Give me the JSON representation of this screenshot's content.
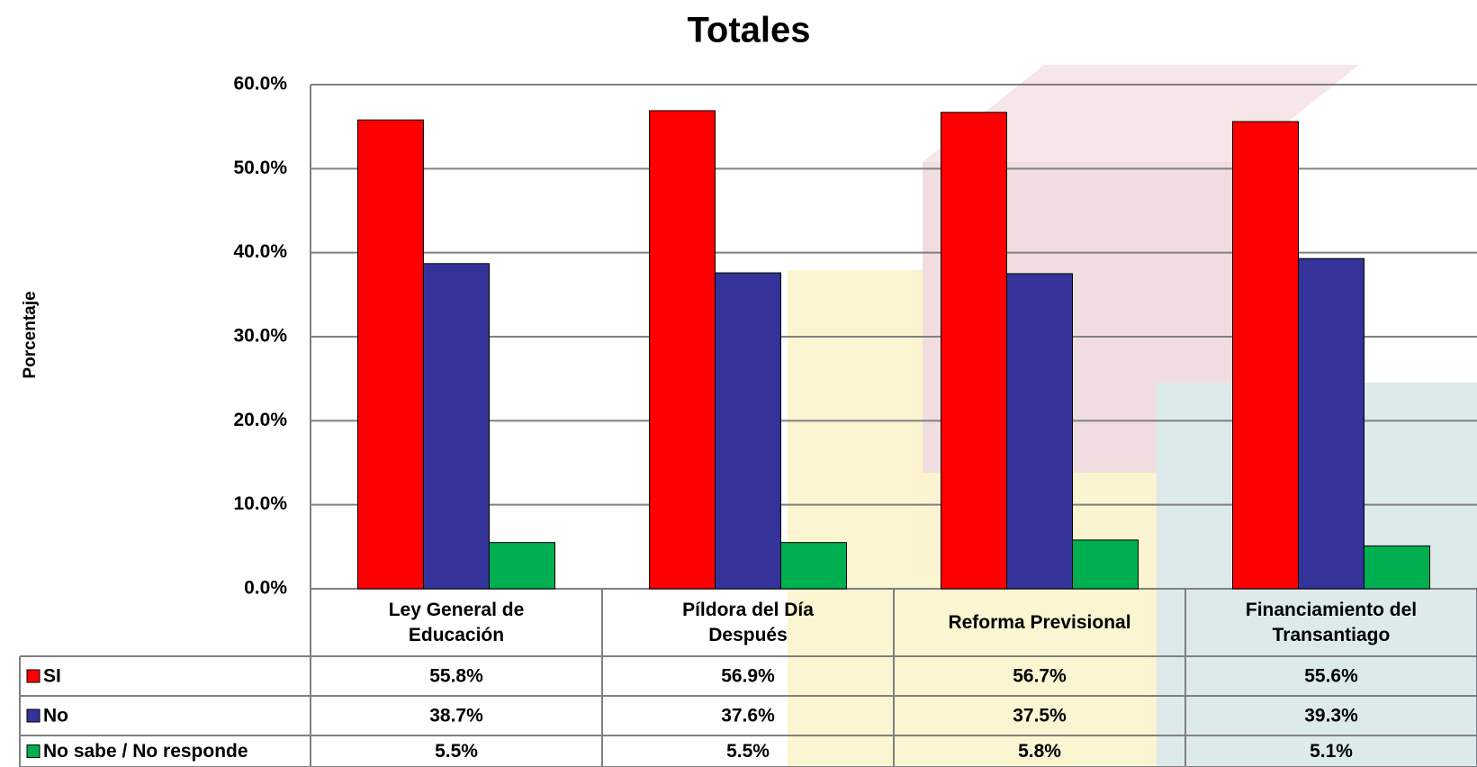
{
  "chart_data": {
    "type": "bar",
    "title": "Totales",
    "y_label": "Porcentaje",
    "categories": [
      "Ley General de Educación",
      "Píldora del Día Después",
      "Reforma Previsional",
      "Financiamiento del Transantiago"
    ],
    "series": [
      {
        "name": "SI",
        "color": "#ff0000",
        "values": [
          55.8,
          56.9,
          56.7,
          55.6
        ],
        "value_labels": [
          "55.8%",
          "56.9%",
          "56.7%",
          "55.6%"
        ]
      },
      {
        "name": "No",
        "color": "#333399",
        "values": [
          38.7,
          37.6,
          37.5,
          39.3
        ],
        "value_labels": [
          "38.7%",
          "37.6%",
          "37.5%",
          "39.3%"
        ]
      },
      {
        "name": "No sabe / No responde",
        "color": "#00b050",
        "values": [
          5.5,
          5.5,
          5.8,
          5.1
        ],
        "value_labels": [
          "5.5%",
          "5.5%",
          "5.8%",
          "5.1%"
        ]
      }
    ],
    "ylim": [
      0,
      60
    ],
    "yticks": [
      {
        "value": 0,
        "label": "0.0%"
      },
      {
        "value": 10,
        "label": "10.0%"
      },
      {
        "value": 20,
        "label": "20.0%"
      },
      {
        "value": 30,
        "label": "30.0%"
      },
      {
        "value": 40,
        "label": "40.0%"
      },
      {
        "value": 50,
        "label": "50.0%"
      },
      {
        "value": 60,
        "label": "60.0%"
      }
    ],
    "grid": true
  }
}
